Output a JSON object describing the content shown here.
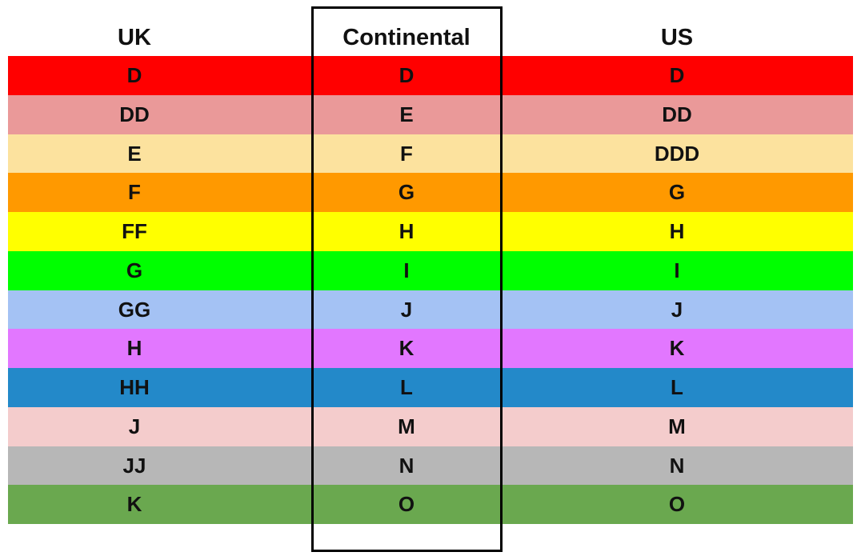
{
  "table": {
    "header": [
      "UK",
      "Continental",
      "US"
    ],
    "rows": [
      {
        "color": "#ff0000",
        "cells": [
          "D",
          "D",
          "D"
        ]
      },
      {
        "color": "#ea9999",
        "cells": [
          "DD",
          "E",
          "DD"
        ]
      },
      {
        "color": "#fce29e",
        "cells": [
          "E",
          "F",
          "DDD"
        ]
      },
      {
        "color": "#ff9900",
        "cells": [
          "F",
          "G",
          "G"
        ]
      },
      {
        "color": "#ffff00",
        "cells": [
          "FF",
          "H",
          "H"
        ]
      },
      {
        "color": "#00ff00",
        "cells": [
          "G",
          "I",
          "I"
        ]
      },
      {
        "color": "#a4c2f4",
        "cells": [
          "GG",
          "J",
          "J"
        ]
      },
      {
        "color": "#e277ff",
        "cells": [
          "H",
          "K",
          "K"
        ]
      },
      {
        "color": "#2389c9",
        "cells": [
          "HH",
          "L",
          "L"
        ]
      },
      {
        "color": "#f4cccc",
        "cells": [
          "J",
          "M",
          "M"
        ]
      },
      {
        "color": "#b7b7b7",
        "cells": [
          "JJ",
          "N",
          "N"
        ]
      },
      {
        "color": "#6aa84f",
        "cells": [
          "K",
          "O",
          "O"
        ]
      }
    ]
  }
}
